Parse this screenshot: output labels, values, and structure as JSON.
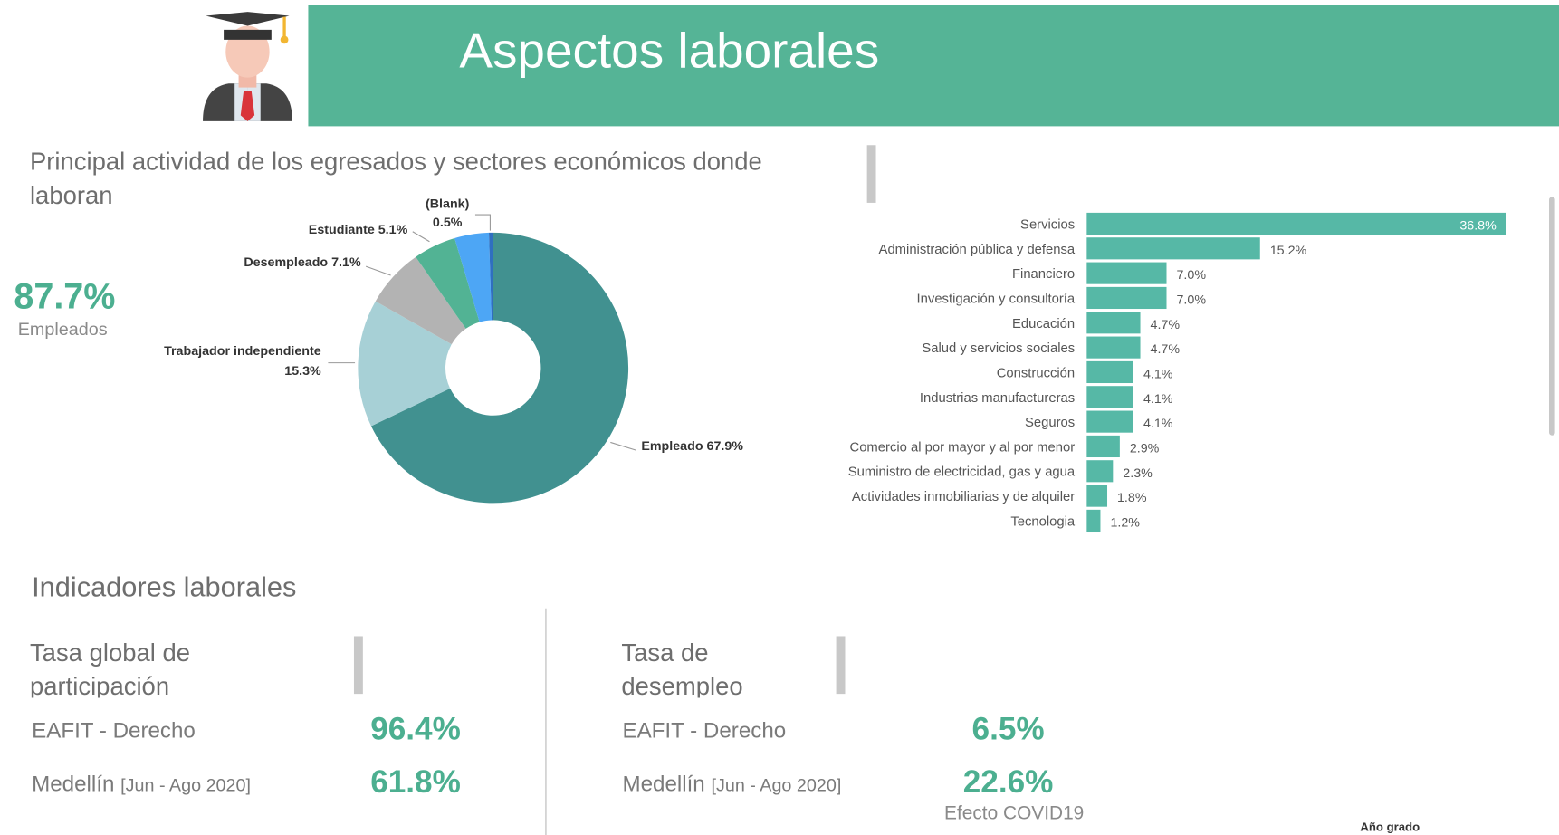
{
  "header": {
    "title": "Aspectos laborales"
  },
  "section_title": "Principal actividad de los egresados y sectores económicos donde laboran",
  "kpi": {
    "value": "87.7%",
    "label": "Empleados"
  },
  "chart_data": [
    {
      "type": "pie",
      "categories": [
        "Empleado",
        "Trabajador independiente",
        "Desempleado",
        "Estudiante",
        null,
        "(Blank)"
      ],
      "values": [
        67.9,
        15.3,
        7.1,
        5.1,
        4.1,
        0.5
      ],
      "value_labels": [
        "67.9%",
        "15.3%",
        "7.1%",
        "5.1%",
        null,
        "0.5%"
      ],
      "colors": [
        "#419190",
        "#a7d0d6",
        "#b3b3b3",
        "#52b394",
        "#4da6f5",
        "#2f6fc0"
      ]
    },
    {
      "type": "bar",
      "orientation": "horizontal",
      "categories": [
        "Servicios",
        "Administración pública y defensa",
        "Financiero",
        "Investigación y consultoría",
        "Educación",
        "Salud y servicios sociales",
        "Construcción",
        "Industrias manufactureras",
        "Seguros",
        "Comercio al por mayor y al por menor",
        "Suministro de electricidad, gas y agua",
        "Actividades inmobiliarias y de alquiler",
        "Tecnologia"
      ],
      "values": [
        36.8,
        15.2,
        7.0,
        7.0,
        4.7,
        4.7,
        4.1,
        4.1,
        4.1,
        2.9,
        2.3,
        1.8,
        1.2
      ],
      "value_labels": [
        "36.8%",
        "15.2%",
        "7.0%",
        "7.0%",
        "4.7%",
        "4.7%",
        "4.1%",
        "4.1%",
        "4.1%",
        "2.9%",
        "2.3%",
        "1.8%",
        "1.2%"
      ],
      "color": "#56b8a6"
    }
  ],
  "indicators": {
    "title": "Indicadores laborales",
    "cards": [
      {
        "title": "Tasa global de participación",
        "rows": [
          {
            "label": "EAFIT - Derecho",
            "value": "96.4%"
          },
          {
            "label": "Medellín",
            "period": "[Jun - Ago 2020]",
            "value": "61.8%"
          }
        ]
      },
      {
        "title": "Tasa de desempleo",
        "rows": [
          {
            "label": "EAFIT - Derecho",
            "value": "6.5%"
          },
          {
            "label": "Medellín",
            "period": "[Jun - Ago 2020]",
            "value": "22.6%",
            "note": "Efecto COVID19"
          }
        ]
      }
    ]
  },
  "footer": {
    "label": "Año grado"
  }
}
